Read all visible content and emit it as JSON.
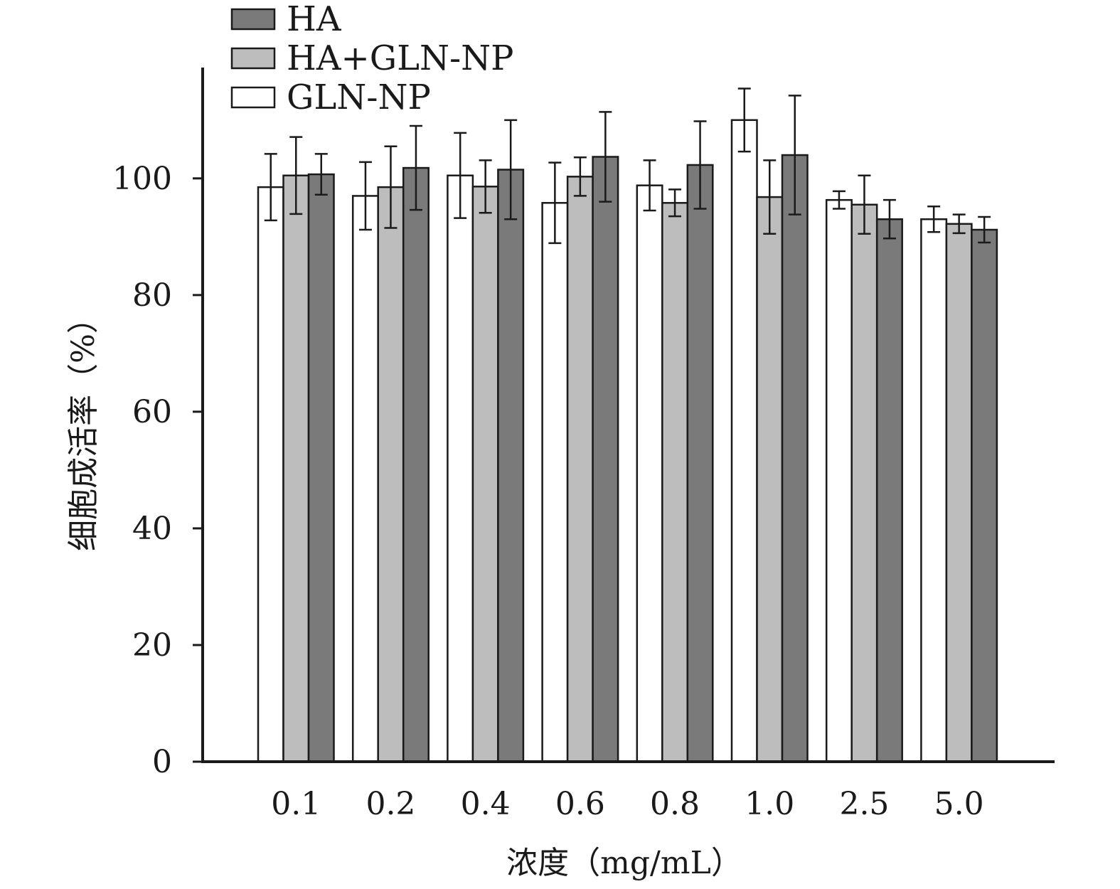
{
  "chart_data": {
    "type": "bar",
    "xlabel": "浓度（mg/mL）",
    "ylabel": "细胞成活率（%）",
    "ylim": [
      0,
      119
    ],
    "yticks": [
      0,
      20,
      40,
      60,
      80,
      100
    ],
    "ytick_labels": [
      "0",
      "20",
      "40",
      "60",
      "80",
      "100"
    ],
    "categories": [
      "0.1",
      "0.2",
      "0.4",
      "0.6",
      "0.8",
      "1.0",
      "2.5",
      "5.0"
    ],
    "series": [
      {
        "name": "GLN-NP",
        "color": "#ffffff",
        "values": [
          98.5,
          97.0,
          100.5,
          95.8,
          98.8,
          110.0,
          96.3,
          93.0
        ],
        "errors": [
          5.7,
          5.8,
          7.3,
          6.9,
          4.3,
          5.4,
          1.5,
          2.2
        ]
      },
      {
        "name": "HA+GLN-NP",
        "color": "#bdbdbd",
        "values": [
          100.5,
          98.5,
          98.6,
          100.3,
          95.8,
          96.8,
          95.5,
          92.2
        ],
        "errors": [
          6.6,
          7.0,
          4.5,
          3.3,
          2.3,
          6.3,
          5.0,
          1.6
        ]
      },
      {
        "name": "HA",
        "color": "#7b7a7a",
        "values": [
          100.7,
          101.8,
          101.5,
          103.7,
          102.3,
          104.0,
          93.0,
          91.2
        ],
        "errors": [
          3.5,
          7.2,
          8.5,
          7.7,
          7.5,
          10.2,
          3.3,
          2.2
        ]
      }
    ],
    "legend": {
      "position": "top-left",
      "entries": [
        "HA",
        "HA+GLN-NP",
        "GLN-NP"
      ]
    },
    "grid": false
  }
}
